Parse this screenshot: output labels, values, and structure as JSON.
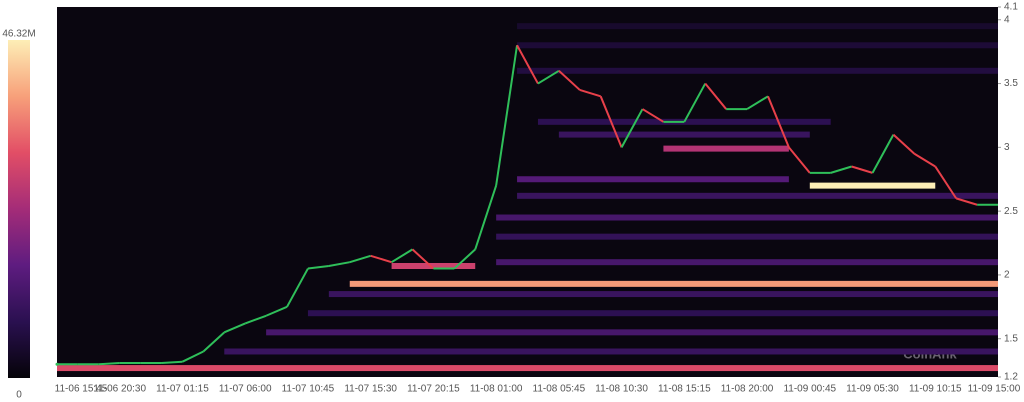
{
  "chart_data": {
    "type": "heatmap",
    "watermark": "CoinAnk",
    "categories": [
      "11-06 15:45",
      null,
      null,
      "11-06 20:30",
      null,
      null,
      "11-07 01:15",
      null,
      null,
      "11-07 06:00",
      null,
      null,
      "11-07 10:45",
      null,
      null,
      "11-07 15:30",
      null,
      null,
      "11-07 20:15",
      null,
      null,
      "11-08 01:00",
      null,
      null,
      "11-08 05:45",
      null,
      null,
      "11-08 10:30",
      null,
      null,
      "11-08 15:15",
      null,
      null,
      "11-08 20:00",
      null,
      null,
      "11-09 00:45",
      null,
      null,
      "11-09 05:30",
      null,
      null,
      "11-09 10:15",
      null,
      null,
      "11-09 15:00"
    ],
    "series": [
      {
        "values": [
          1.3,
          1.3,
          1.3,
          1.31,
          1.31,
          1.31,
          1.32,
          1.4,
          1.55,
          1.62,
          1.68,
          1.75,
          2.05,
          2.07,
          2.1,
          2.15,
          2.1,
          2.2,
          2.05,
          2.05,
          2.2,
          2.7,
          3.8,
          3.5,
          3.6,
          3.45,
          3.4,
          3.0,
          3.3,
          3.2,
          3.2,
          3.5,
          3.3,
          3.3,
          3.4,
          3.0,
          2.8,
          2.8,
          2.85,
          2.8,
          3.1,
          2.95,
          2.85,
          2.6,
          2.55,
          2.55
        ],
        "up_color": "#2fbf5a",
        "down_color": "#e8404a"
      }
    ],
    "levels": [
      {
        "price": 1.27,
        "value": 30,
        "start": 0,
        "end": 45
      },
      {
        "price": 1.4,
        "value": 10,
        "start": 8,
        "end": 45
      },
      {
        "price": 1.55,
        "value": 12,
        "start": 10,
        "end": 45
      },
      {
        "price": 1.7,
        "value": 8,
        "start": 12,
        "end": 45
      },
      {
        "price": 1.85,
        "value": 10,
        "start": 13,
        "end": 45
      },
      {
        "price": 1.93,
        "value": 38,
        "start": 14,
        "end": 45
      },
      {
        "price": 2.07,
        "value": 28,
        "start": 16,
        "end": 20
      },
      {
        "price": 2.1,
        "value": 12,
        "start": 21,
        "end": 45
      },
      {
        "price": 2.3,
        "value": 9,
        "start": 21,
        "end": 45
      },
      {
        "price": 2.45,
        "value": 12,
        "start": 21,
        "end": 45
      },
      {
        "price": 2.62,
        "value": 10,
        "start": 22,
        "end": 45
      },
      {
        "price": 2.7,
        "value": 46.32,
        "start": 36,
        "end": 42
      },
      {
        "price": 2.75,
        "value": 14,
        "start": 22,
        "end": 35
      },
      {
        "price": 2.99,
        "value": 25,
        "start": 29,
        "end": 35
      },
      {
        "price": 3.1,
        "value": 10,
        "start": 24,
        "end": 36
      },
      {
        "price": 3.2,
        "value": 8,
        "start": 23,
        "end": 37
      },
      {
        "price": 3.6,
        "value": 6,
        "start": 22,
        "end": 45
      },
      {
        "price": 3.8,
        "value": 5,
        "start": 22,
        "end": 45
      },
      {
        "price": 3.95,
        "value": 4,
        "start": 22,
        "end": 45
      }
    ],
    "ylim": [
      1.2,
      4.1
    ],
    "yticks": [
      1.2,
      1.5,
      2,
      2.5,
      3,
      3.5,
      4,
      4.1
    ],
    "colorbar": {
      "lim": [
        0,
        46.32
      ],
      "ticks": [
        0,
        {
          "value": 46.32,
          "label": "46.32M"
        }
      ],
      "colors": [
        "#050308",
        "#2a1050",
        "#5e1c80",
        "#a42c78",
        "#e24e66",
        "#f7a07a",
        "#fdeeb6"
      ]
    },
    "background": "#0a0610"
  }
}
